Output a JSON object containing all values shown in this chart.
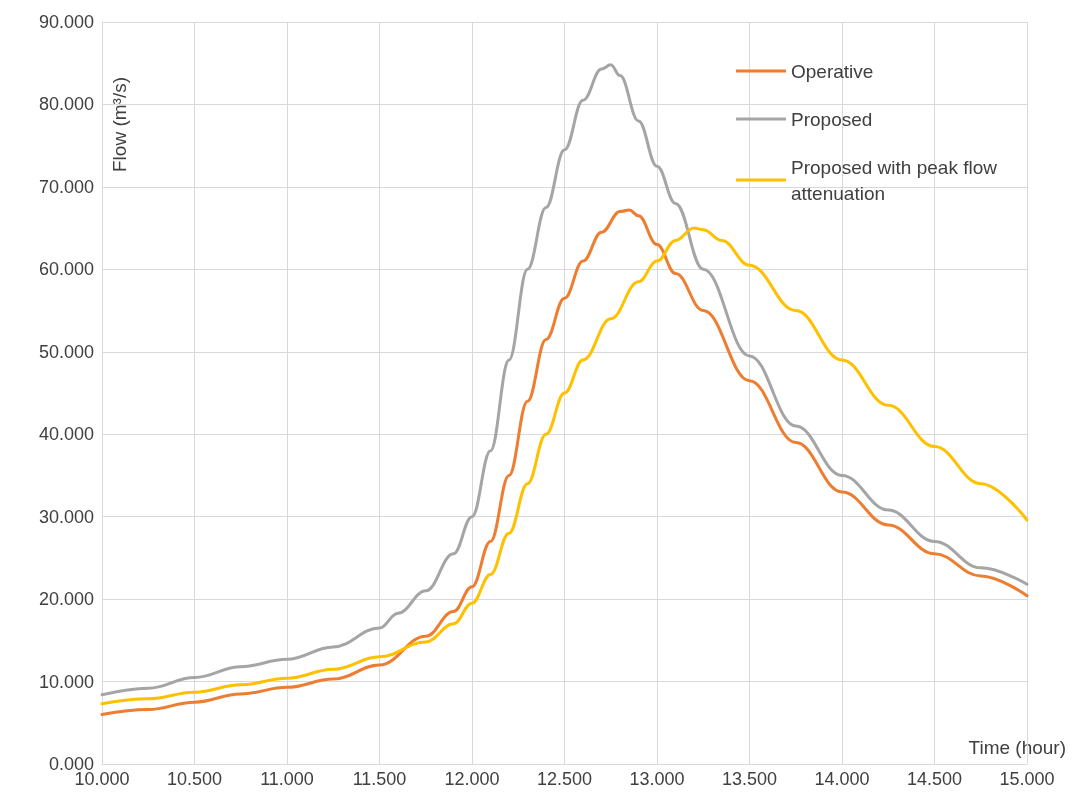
{
  "chart_data": {
    "type": "line",
    "xlabel": "Time (hour)",
    "ylabel": "Flow (m³/s)",
    "xlim": [
      10,
      15
    ],
    "xticks": [
      {
        "value": 10,
        "label": "10.000"
      },
      {
        "value": 10.5,
        "label": "10.500"
      },
      {
        "value": 11,
        "label": "11.000"
      },
      {
        "value": 11.5,
        "label": "11.500"
      },
      {
        "value": 12,
        "label": "12.000"
      },
      {
        "value": 12.5,
        "label": "12.500"
      },
      {
        "value": 13,
        "label": "13.000"
      },
      {
        "value": 13.5,
        "label": "13.500"
      },
      {
        "value": 14,
        "label": "14.000"
      },
      {
        "value": 14.5,
        "label": "14.500"
      },
      {
        "value": 15,
        "label": "15.000"
      }
    ],
    "ylim": [
      0,
      90
    ],
    "yticks": [
      {
        "value": 0,
        "label": "0.000"
      },
      {
        "value": 10,
        "label": "10.000"
      },
      {
        "value": 20,
        "label": "20.000"
      },
      {
        "value": 30,
        "label": "30.000"
      },
      {
        "value": 40,
        "label": "40.000"
      },
      {
        "value": 50,
        "label": "50.000"
      },
      {
        "value": 60,
        "label": "60.000"
      },
      {
        "value": 70,
        "label": "70.000"
      },
      {
        "value": 80,
        "label": "80.000"
      },
      {
        "value": 90,
        "label": "90.000"
      }
    ],
    "grid": true,
    "legend": "top right",
    "marker": "none",
    "line_style": "solid",
    "series": [
      {
        "name": "Operative",
        "color": "#ed7d31",
        "x": [
          10,
          10.25,
          10.5,
          10.75,
          11,
          11.25,
          11.5,
          11.75,
          11.9,
          12,
          12.1,
          12.2,
          12.3,
          12.4,
          12.5,
          12.6,
          12.7,
          12.8,
          12.85,
          12.9,
          13,
          13.1,
          13.25,
          13.5,
          13.75,
          14,
          14.25,
          14.5,
          14.75,
          15
        ],
        "values": [
          6.0,
          6.6,
          7.5,
          8.5,
          9.3,
          10.3,
          12.0,
          15.5,
          18.5,
          21.5,
          27,
          35,
          44,
          51.5,
          56.5,
          61,
          64.5,
          67,
          67.2,
          66.5,
          63,
          59.5,
          55,
          46.5,
          39,
          33,
          29,
          25.5,
          22.8,
          20.4
        ]
      },
      {
        "name": "Proposed",
        "color": "#a5a5a5",
        "x": [
          10,
          10.25,
          10.5,
          10.75,
          11,
          11.25,
          11.5,
          11.6,
          11.75,
          11.9,
          12,
          12.1,
          12.2,
          12.3,
          12.4,
          12.5,
          12.6,
          12.7,
          12.75,
          12.8,
          12.9,
          13,
          13.1,
          13.25,
          13.5,
          13.75,
          14,
          14.25,
          14.5,
          14.75,
          15
        ],
        "values": [
          8.4,
          9.2,
          10.5,
          11.8,
          12.7,
          14.2,
          16.5,
          18.3,
          21,
          25.5,
          30,
          38,
          49,
          60,
          67.5,
          74.5,
          80.5,
          84.3,
          84.8,
          83.5,
          78,
          72.5,
          68,
          60,
          49.5,
          41,
          35,
          30.8,
          27,
          23.8,
          21.8
        ]
      },
      {
        "name": "Proposed with peak flow attenuation",
        "color": "#ffc000",
        "x": [
          10,
          10.25,
          10.5,
          10.75,
          11,
          11.25,
          11.5,
          11.75,
          11.9,
          12,
          12.1,
          12.2,
          12.3,
          12.4,
          12.5,
          12.6,
          12.75,
          12.9,
          13,
          13.1,
          13.2,
          13.25,
          13.35,
          13.5,
          13.75,
          14,
          14.25,
          14.5,
          14.75,
          15
        ],
        "values": [
          7.3,
          7.9,
          8.7,
          9.6,
          10.4,
          11.5,
          13.0,
          14.8,
          17,
          19.5,
          23,
          28,
          34,
          40,
          45,
          49,
          54,
          58.5,
          61,
          63.5,
          65,
          64.8,
          63.5,
          60.5,
          55,
          49,
          43.5,
          38.5,
          34,
          29.6
        ]
      }
    ]
  }
}
